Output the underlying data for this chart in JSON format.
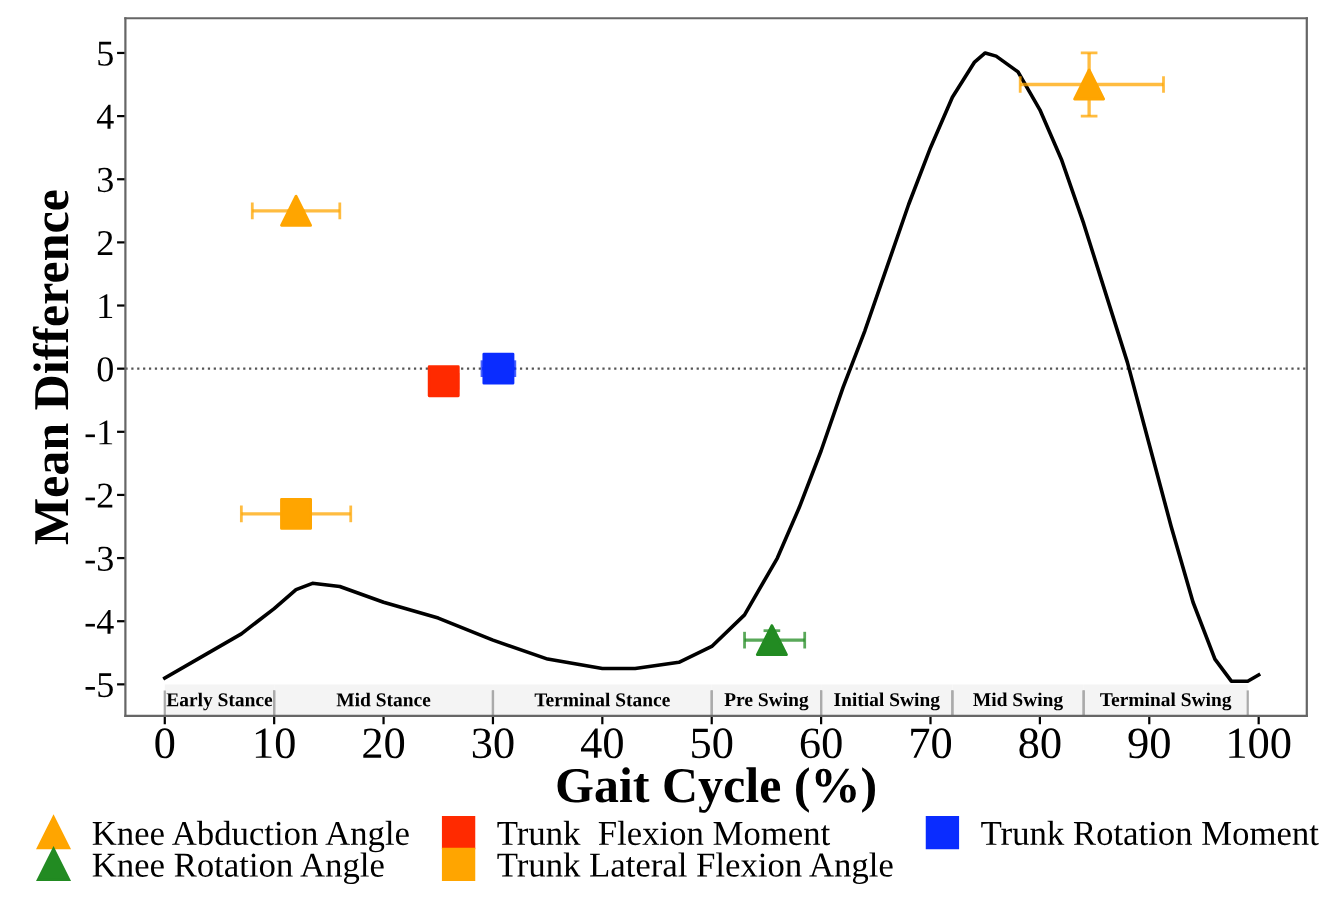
{
  "chart_data": {
    "type": "scatter",
    "xlabel": "Gait Cycle (%)",
    "ylabel": "Mean Difference",
    "xlim": [
      -3.6,
      104.4
    ],
    "ylim": [
      -5.5,
      5.55
    ],
    "xticks": [
      0,
      10,
      20,
      30,
      40,
      50,
      60,
      70,
      80,
      90,
      100
    ],
    "yticks": [
      {
        "value": -5,
        "label": "-5"
      },
      {
        "value": -4,
        "label": "-4"
      },
      {
        "value": -3,
        "label": "-3"
      },
      {
        "value": -2,
        "label": "-2"
      },
      {
        "value": -1,
        "label": "-1"
      },
      0,
      1,
      2,
      3,
      4,
      5
    ],
    "grid": false,
    "legend": "bottom",
    "series": [
      {
        "type": "line",
        "color": "#000000",
        "marker": "none",
        "line_style": "solid",
        "x": [
          0,
          3,
          7,
          10,
          12,
          13.5,
          16,
          20,
          25,
          30,
          35,
          40,
          43,
          47,
          50,
          53,
          56,
          58,
          60,
          62,
          64,
          66,
          68,
          70,
          72,
          74,
          75,
          76,
          78,
          80,
          82,
          84,
          86,
          88,
          90,
          92,
          94,
          96,
          97.5,
          99,
          100
        ],
        "values": [
          -4.9,
          -4.6,
          -4.2,
          -3.8,
          -3.5,
          -3.4,
          -3.45,
          -3.7,
          -3.95,
          -4.3,
          -4.6,
          -4.75,
          -4.75,
          -4.65,
          -4.4,
          -3.9,
          -3.0,
          -2.2,
          -1.3,
          -0.3,
          0.6,
          1.6,
          2.6,
          3.5,
          4.3,
          4.85,
          5.0,
          4.95,
          4.7,
          4.1,
          3.3,
          2.3,
          1.2,
          0.1,
          -1.2,
          -2.5,
          -3.7,
          -4.6,
          -4.95,
          -4.95,
          -4.85
        ]
      },
      {
        "name": "Knee Abduction Angle",
        "color": "#ffa500",
        "marker": "triangle",
        "x": [
          12,
          84.5
        ],
        "values": [
          2.5,
          4.5
        ],
        "xerrors": [
          [
            8,
            16
          ],
          [
            78.2,
            91.3
          ]
        ],
        "errors": [
          null,
          [
            4.0,
            5.0
          ]
        ]
      },
      {
        "name": "Knee Rotation Angle",
        "color": "#228b22",
        "marker": "triangle",
        "x": [
          55.5
        ],
        "values": [
          -4.3
        ],
        "xerrors": [
          [
            53,
            58.5
          ]
        ],
        "errors": [
          0.15
        ]
      },
      {
        "name": "Trunk  Flexion Moment",
        "color": "#ff2a00",
        "marker": "square",
        "x": [
          25.5
        ],
        "values": [
          -0.2
        ],
        "xerrors": [
          [
            24.5,
            26.8
          ]
        ]
      },
      {
        "name": "Trunk Lateral Flexion Angle",
        "color": "#ffa500",
        "marker": "square",
        "x": [
          12
        ],
        "values": [
          -2.3
        ],
        "xerrors": [
          [
            7,
            17
          ]
        ]
      },
      {
        "name": "Trunk Rotation Moment",
        "color": "#0a2cff",
        "marker": "square",
        "x": [
          30.5
        ],
        "values": [
          0
        ],
        "xerrors": [
          [
            29,
            32
          ]
        ]
      }
    ],
    "ref_lines": [
      {
        "axis": "y",
        "value": 0,
        "color": "#555555",
        "line_style": "dotted"
      }
    ],
    "bands": [
      {
        "axis": "x",
        "from": 0,
        "to": 10,
        "label": "Early Stance",
        "color": "#f4f4f4"
      },
      {
        "axis": "x",
        "from": 10,
        "to": 30,
        "label": "Mid Stance",
        "color": "#f4f4f4"
      },
      {
        "axis": "x",
        "from": 30,
        "to": 50,
        "label": "Terminal Stance",
        "color": "#f4f4f4"
      },
      {
        "axis": "x",
        "from": 50,
        "to": 60,
        "label": "Pre Swing",
        "color": "#f4f4f4"
      },
      {
        "axis": "x",
        "from": 60,
        "to": 72,
        "label": "Initial Swing",
        "color": "#f4f4f4"
      },
      {
        "axis": "x",
        "from": 72,
        "to": 84,
        "label": "Mid Swing",
        "color": "#f4f4f4"
      },
      {
        "axis": "x",
        "from": 84,
        "to": 99,
        "label": "Terminal Swing",
        "color": "#f4f4f4"
      }
    ]
  }
}
